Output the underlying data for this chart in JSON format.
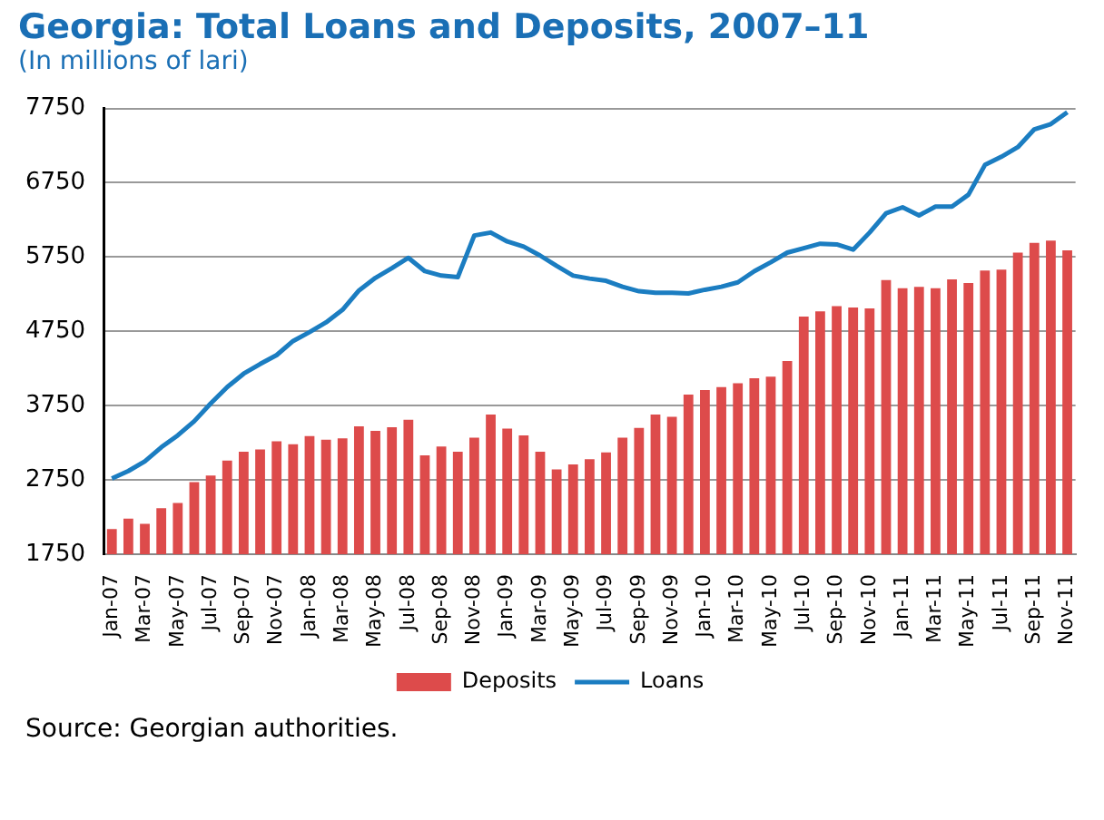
{
  "chart_data": {
    "type": "bar",
    "title": "Georgia: Total Loans and Deposits, 2007–11",
    "subtitle": "(In millions of lari)",
    "categories": [
      "Jan-07",
      null,
      "Mar-07",
      null,
      "May-07",
      null,
      "Jul-07",
      null,
      "Sep-07",
      null,
      "Nov-07",
      null,
      "Jan-08",
      null,
      "Mar-08",
      null,
      "May-08",
      null,
      "Jul-08",
      null,
      "Sep-08",
      null,
      "Nov-08",
      null,
      "Jan-09",
      null,
      "Mar-09",
      null,
      "May-09",
      null,
      "Jul-09",
      null,
      "Sep-09",
      null,
      "Nov-09",
      null,
      "Jan-10",
      null,
      "Mar-10",
      null,
      "May-10",
      null,
      "Jul-10",
      null,
      "Sep-10",
      null,
      "Nov-10",
      null,
      "Jan-11",
      null,
      "Mar-11",
      null,
      "May-11",
      null,
      "Jul-11",
      null,
      "Sep-11",
      null,
      "Nov-11"
    ],
    "series": [
      {
        "name": "Deposits",
        "color": "#dd4b4b",
        "values": [
          2090,
          2230,
          2160,
          2370,
          2440,
          2720,
          2810,
          3010,
          3130,
          3160,
          3270,
          3230,
          3340,
          3290,
          3310,
          3470,
          3410,
          3460,
          3560,
          3080,
          3200,
          3130,
          3320,
          3630,
          3440,
          3350,
          3130,
          2890,
          2960,
          3030,
          3120,
          3320,
          3450,
          3630,
          3600,
          3900,
          3960,
          4000,
          4050,
          4120,
          4140,
          4350,
          4950,
          5020,
          5090,
          5070,
          5060,
          5440,
          5330,
          5350,
          5330,
          5450,
          5400,
          5570,
          5580,
          5810,
          5940,
          5970,
          5840
        ]
      },
      {
        "name": "Loans",
        "type": "line",
        "color": "#1b7dc1",
        "values": [
          2770,
          2870,
          3000,
          3190,
          3350,
          3540,
          3780,
          4000,
          4180,
          4310,
          4430,
          4620,
          4740,
          4870,
          5040,
          5300,
          5470,
          5600,
          5740,
          5560,
          5500,
          5480,
          6040,
          6080,
          5960,
          5890,
          5770,
          5630,
          5500,
          5460,
          5430,
          5350,
          5290,
          5270,
          5270,
          5260,
          5310,
          5350,
          5410,
          5560,
          5680,
          5810,
          5870,
          5930,
          5920,
          5850,
          6080,
          6340,
          6420,
          6310,
          6430,
          6430,
          6590,
          6990,
          7100,
          7230,
          7470,
          7540,
          7700
        ]
      }
    ],
    "ylim": [
      1750,
      7750
    ],
    "yticks": [
      1750,
      2750,
      3750,
      4750,
      5750,
      6750,
      7750
    ],
    "grid": "y",
    "legend": "bottom",
    "annotations": [
      "Source: Georgian authorities."
    ]
  }
}
